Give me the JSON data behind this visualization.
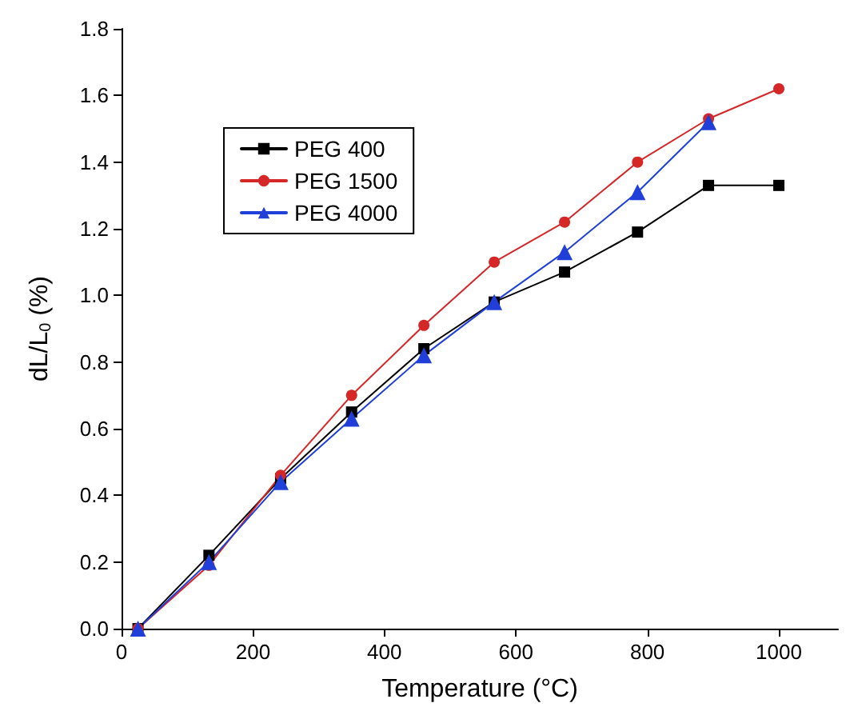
{
  "chart_data": {
    "type": "line",
    "xlabel": "Temperature (°C)",
    "ylabel": "dL/L$_{0}$ (%)",
    "xlim": [
      0,
      1090
    ],
    "xticks": [
      0,
      200,
      400,
      600,
      800,
      1000
    ],
    "ylim": [
      0,
      1.8
    ],
    "yticks": [
      {
        "value": 0,
        "label": "0.0"
      },
      {
        "value": 0.2,
        "label": "0.2"
      },
      {
        "value": 0.4,
        "label": "0.4"
      },
      {
        "value": 0.6,
        "label": "0.6"
      },
      {
        "value": 0.8,
        "label": "0.8"
      },
      {
        "value": 1.0,
        "label": "1.0"
      },
      {
        "value": 1.2,
        "label": "1.2"
      },
      {
        "value": 1.4,
        "label": "1.4"
      },
      {
        "value": 1.6,
        "label": "1.6"
      },
      {
        "value": 1.8,
        "label": "1.8"
      }
    ],
    "grid": false,
    "legend": "top left",
    "line_style": "solid",
    "series": [
      {
        "name": "PEG 400",
        "color": "#000000",
        "marker": "square",
        "x": [
          25,
          133,
          242,
          350,
          460,
          567,
          674,
          785,
          893,
          1000
        ],
        "values": [
          0,
          0.22,
          0.45,
          0.65,
          0.84,
          0.98,
          1.07,
          1.19,
          1.33,
          1.33
        ]
      },
      {
        "name": "PEG 1500",
        "color": "#d62728",
        "marker": "circle",
        "x": [
          25,
          133,
          242,
          350,
          460,
          567,
          674,
          785,
          893,
          1000
        ],
        "values": [
          0,
          0.19,
          0.46,
          0.7,
          0.91,
          1.1,
          1.22,
          1.4,
          1.53,
          1.62
        ]
      },
      {
        "name": "PEG 4000",
        "color": "#1f3fd8",
        "marker": "triangle",
        "x": [
          25,
          133,
          242,
          350,
          460,
          567,
          674,
          785,
          893
        ],
        "values": [
          0,
          0.2,
          0.44,
          0.63,
          0.82,
          0.98,
          1.13,
          1.31,
          1.52
        ]
      }
    ]
  }
}
